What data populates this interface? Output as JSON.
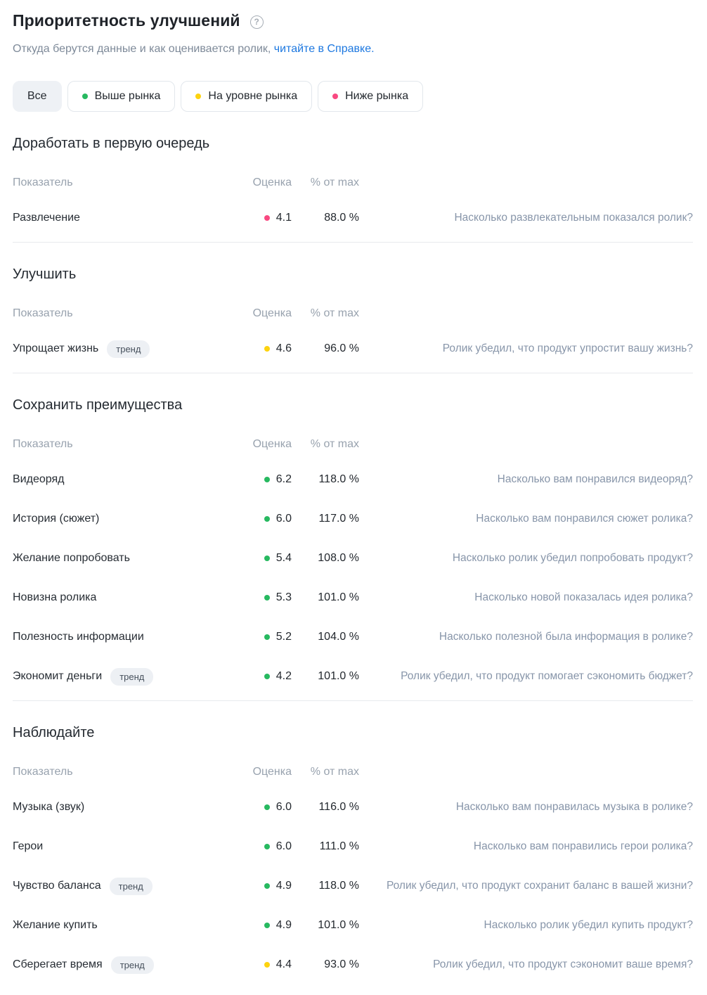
{
  "page": {
    "title": "Приоритетность улучшений",
    "help_icon_glyph": "?",
    "subtitle_prefix": "Откуда берутся данные и как оценивается ролик, ",
    "subtitle_link": "читайте в Справке."
  },
  "status_colors": {
    "above_market": "#27b960",
    "at_market": "#fdd30f",
    "below_market": "#f94981"
  },
  "link_color": "#1d78e0",
  "filters": [
    {
      "label": "Все",
      "selected": true,
      "status": null
    },
    {
      "label": "Выше рынка",
      "selected": false,
      "status": "above_market"
    },
    {
      "label": "На уровне рынка",
      "selected": false,
      "status": "at_market"
    },
    {
      "label": "Ниже рынка",
      "selected": false,
      "status": "below_market"
    }
  ],
  "table_headers": {
    "metric": "Показатель",
    "score": "Оценка",
    "percent": "% от max"
  },
  "badge_label": "тренд",
  "sections": [
    {
      "title": "Доработать в первую очередь",
      "rows": [
        {
          "metric": "Развлечение",
          "trend": false,
          "status": "below_market",
          "score": "4.1",
          "percent": "88.0 %",
          "description": "Насколько развлекательным показался ролик?"
        }
      ]
    },
    {
      "title": "Улучшить",
      "rows": [
        {
          "metric": "Упрощает жизнь",
          "trend": true,
          "status": "at_market",
          "score": "4.6",
          "percent": "96.0 %",
          "description": "Ролик убедил, что продукт упростит вашу жизнь?"
        }
      ]
    },
    {
      "title": "Сохранить преимущества",
      "rows": [
        {
          "metric": "Видеоряд",
          "trend": false,
          "status": "above_market",
          "score": "6.2",
          "percent": "118.0 %",
          "description": "Насколько вам понравился видеоряд?"
        },
        {
          "metric": "История (сюжет)",
          "trend": false,
          "status": "above_market",
          "score": "6.0",
          "percent": "117.0 %",
          "description": "Насколько вам понравился сюжет ролика?"
        },
        {
          "metric": "Желание попробовать",
          "trend": false,
          "status": "above_market",
          "score": "5.4",
          "percent": "108.0 %",
          "description": "Насколько ролик убедил попробовать продукт?"
        },
        {
          "metric": "Новизна ролика",
          "trend": false,
          "status": "above_market",
          "score": "5.3",
          "percent": "101.0 %",
          "description": "Насколько новой показалась идея ролика?"
        },
        {
          "metric": "Полезность информации",
          "trend": false,
          "status": "above_market",
          "score": "5.2",
          "percent": "104.0 %",
          "description": "Насколько полезной была информация в ролике?"
        },
        {
          "metric": "Экономит деньги",
          "trend": true,
          "status": "above_market",
          "score": "4.2",
          "percent": "101.0 %",
          "description": "Ролик убедил, что продукт помогает сэкономить бюджет?"
        }
      ]
    },
    {
      "title": "Наблюдайте",
      "rows": [
        {
          "metric": "Музыка (звук)",
          "trend": false,
          "status": "above_market",
          "score": "6.0",
          "percent": "116.0 %",
          "description": "Насколько вам понравилась музыка в ролике?"
        },
        {
          "metric": "Герои",
          "trend": false,
          "status": "above_market",
          "score": "6.0",
          "percent": "111.0 %",
          "description": "Насколько вам понравились герои ролика?"
        },
        {
          "metric": "Чувство баланса",
          "trend": true,
          "status": "above_market",
          "score": "4.9",
          "percent": "118.0 %",
          "description": "Ролик убедил, что продукт сохранит баланс в вашей жизни?"
        },
        {
          "metric": "Желание купить",
          "trend": false,
          "status": "above_market",
          "score": "4.9",
          "percent": "101.0 %",
          "description": "Насколько ролик убедил купить продукт?"
        },
        {
          "metric": "Сберегает время",
          "trend": true,
          "status": "at_market",
          "score": "4.4",
          "percent": "93.0 %",
          "description": "Ролик убедил, что продукт сэкономит ваше время?"
        }
      ]
    }
  ]
}
